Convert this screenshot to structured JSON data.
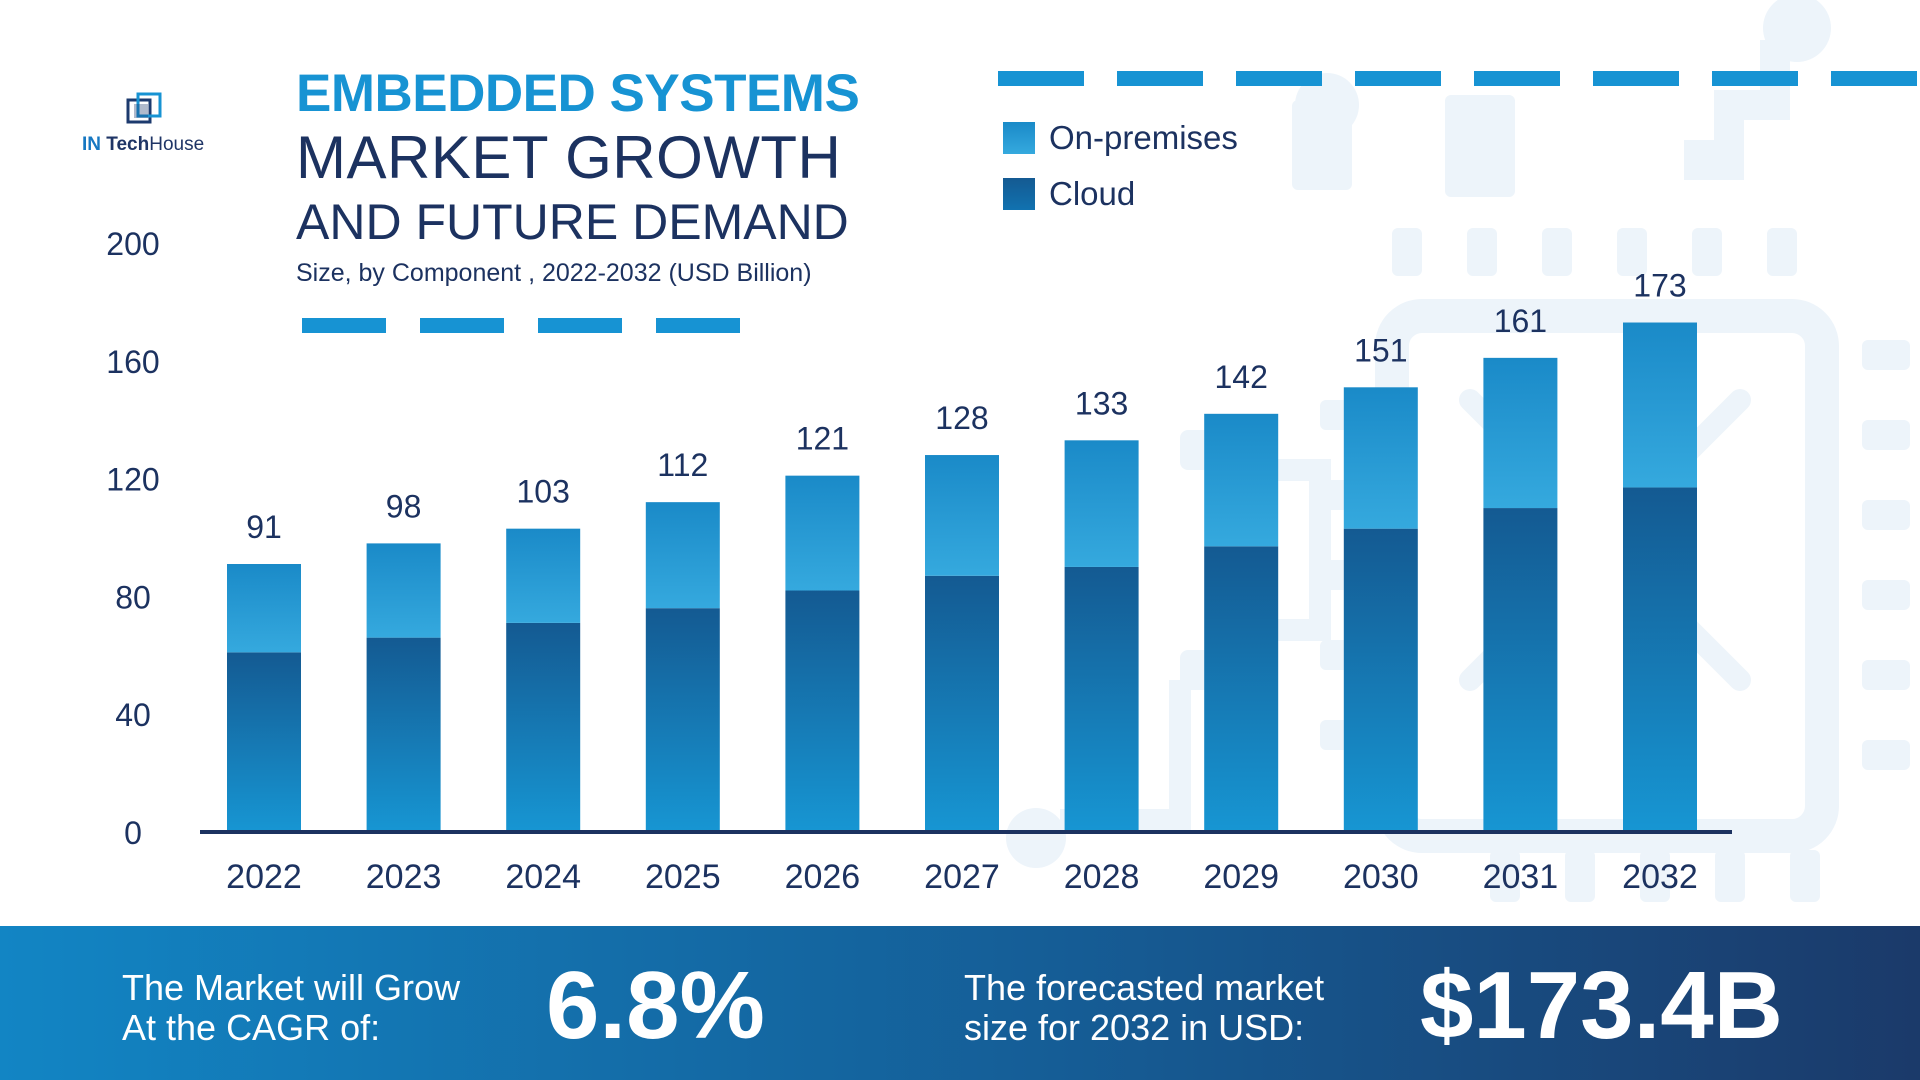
{
  "logo": {
    "in": "IN",
    "tech": "Tech",
    "house": "House"
  },
  "title": {
    "line1": "EMBEDDED SYSTEMS",
    "line2": "MARKET GROWTH",
    "line3": "AND FUTURE DEMAND",
    "subtitle": "Size, by Component , 2022-2032 (USD Billion)"
  },
  "legend": [
    {
      "label": "On-premises",
      "color": "#2aa3dc"
    },
    {
      "label": "Cloud",
      "color": "#145a92"
    }
  ],
  "chart_data": {
    "type": "bar",
    "stacked": true,
    "categories": [
      "2022",
      "2023",
      "2024",
      "2025",
      "2026",
      "2027",
      "2028",
      "2029",
      "2030",
      "2031",
      "2032"
    ],
    "series": [
      {
        "name": "Cloud",
        "values": [
          61,
          66,
          71,
          76,
          82,
          87,
          90,
          97,
          103,
          110,
          117
        ]
      },
      {
        "name": "On-premises",
        "values": [
          30,
          32,
          32,
          36,
          39,
          41,
          43,
          45,
          48,
          51,
          56
        ]
      }
    ],
    "totals": [
      91,
      98,
      103,
      112,
      121,
      128,
      133,
      142,
      151,
      161,
      173
    ],
    "total_labels": [
      "91",
      "98",
      "103",
      "112",
      "121",
      "128",
      "133",
      "142",
      "151",
      "161",
      "173"
    ],
    "yticks": [
      "0",
      "40",
      "80",
      "120",
      "160",
      "200"
    ],
    "ylim": [
      0,
      200
    ],
    "grid": false,
    "legend_position": "top-right",
    "title": "",
    "xlabel": "",
    "ylabel": ""
  },
  "banner": {
    "cagr_line1": "The Market will Grow",
    "cagr_line2": "At the CAGR of:",
    "cagr_value": "6.8%",
    "forecast_line1": "The forecasted market",
    "forecast_line2": "size for 2032 in USD:",
    "forecast_value": "$173.4B"
  },
  "colors": {
    "cloud_dark": "#145a92",
    "cloud_light": "#1796d3",
    "onprem_dark": "#1a8ac8",
    "onprem_light": "#35a9de",
    "text": "#1c3260",
    "accent": "#1793d3",
    "deco": "#edf4fa"
  }
}
